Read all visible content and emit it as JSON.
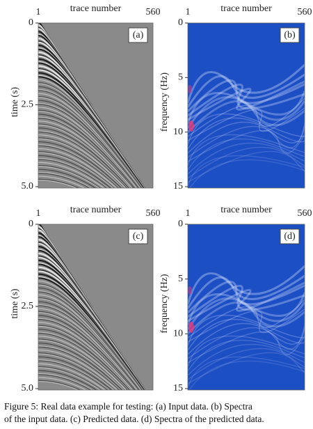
{
  "panels": [
    {
      "label": "(a)",
      "x_label": "trace number",
      "y_label": "time (s)",
      "xlim": [
        1,
        560
      ],
      "xticks": [
        1,
        560
      ],
      "ylim": [
        0,
        5
      ],
      "yticks": [
        0,
        2.5,
        {
          "value": 5,
          "label": "5.0"
        }
      ],
      "kind": "seismic"
    },
    {
      "label": "(b)",
      "x_label": "trace number",
      "y_label": "frequency (Hz)",
      "xlim": [
        1,
        560
      ],
      "xticks": [
        1,
        560
      ],
      "ylim": [
        0,
        15
      ],
      "yticks": [
        0,
        5,
        10,
        15
      ],
      "kind": "spectrum"
    },
    {
      "label": "(c)",
      "x_label": "trace number",
      "y_label": "time (s)",
      "xlim": [
        1,
        560
      ],
      "xticks": [
        1,
        560
      ],
      "ylim": [
        0,
        5
      ],
      "yticks": [
        0,
        2.5,
        {
          "value": 5,
          "label": "5.0"
        }
      ],
      "kind": "seismic"
    },
    {
      "label": "(d)",
      "x_label": "trace number",
      "y_label": "frequency (Hz)",
      "xlim": [
        1,
        560
      ],
      "xticks": [
        1,
        560
      ],
      "ylim": [
        0,
        15
      ],
      "yticks": [
        0,
        5,
        10,
        15
      ],
      "kind": "spectrum"
    }
  ],
  "caption": [
    "Figure 5: Real data example for testing: (a) Input data. (b) Spectra",
    "of the input data. (c) Predicted data. (d) Spectra of the predicted data."
  ]
}
